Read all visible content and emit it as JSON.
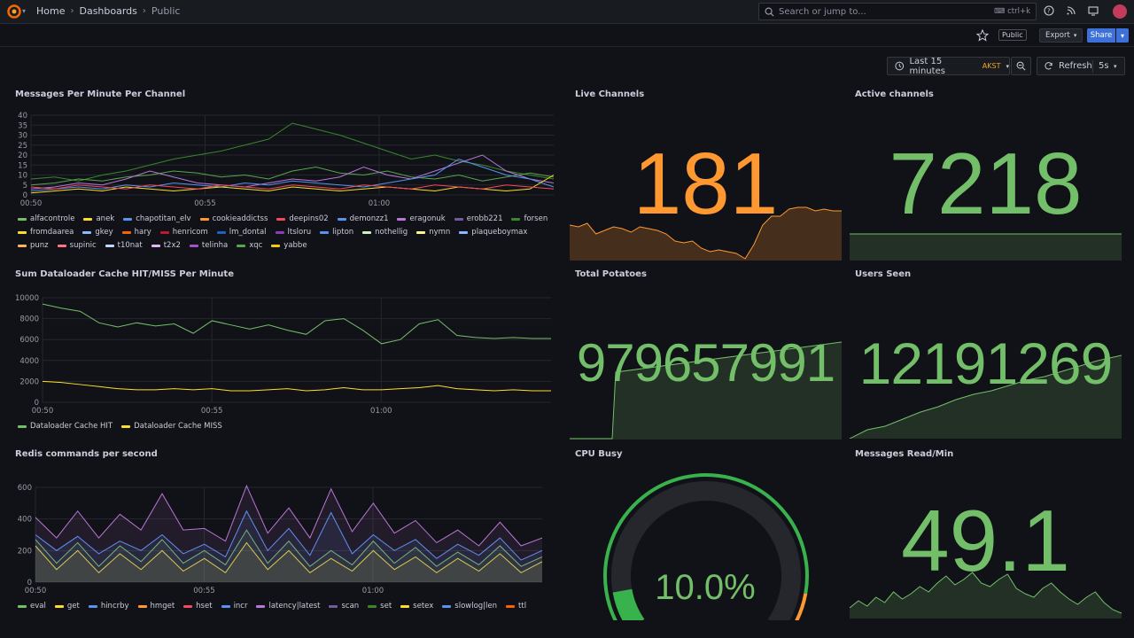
{
  "topbar": {
    "breadcrumbs": [
      "Home",
      "Dashboards",
      "Public"
    ],
    "search_placeholder": "Search or jump to...",
    "search_shortcut": "ctrl+k"
  },
  "toolbar": {
    "public_badge": "Public",
    "export_label": "Export",
    "share_label": "Share"
  },
  "time_controls": {
    "range_label": "Last 15 minutes",
    "timezone": "AKST",
    "refresh_label": "Refresh",
    "refresh_interval": "5s"
  },
  "panels": {
    "messages_per_minute": {
      "title": "Messages Per Minute Per Channel",
      "legend": [
        {
          "name": "alfacontrole",
          "color": "#73bf69"
        },
        {
          "name": "anek",
          "color": "#fade2a"
        },
        {
          "name": "chapotitan_elv",
          "color": "#5794f2"
        },
        {
          "name": "cookieaddictss",
          "color": "#ff9830"
        },
        {
          "name": "deepins02",
          "color": "#f2495c"
        },
        {
          "name": "demonzz1",
          "color": "#5794f2"
        },
        {
          "name": "eragonuk",
          "color": "#b877d9"
        },
        {
          "name": "erobb221",
          "color": "#705da0"
        },
        {
          "name": "forsen",
          "color": "#37872d"
        },
        {
          "name": "fromdaarea",
          "color": "#fade2a"
        },
        {
          "name": "gkey",
          "color": "#8ab8ff"
        },
        {
          "name": "hary",
          "color": "#fa6400"
        },
        {
          "name": "henricom",
          "color": "#c4162a"
        },
        {
          "name": "lm_dontal",
          "color": "#1f60c4"
        },
        {
          "name": "ltsloru",
          "color": "#8f3bb8"
        },
        {
          "name": "lipton",
          "color": "#5794f2"
        },
        {
          "name": "nothellig",
          "color": "#c8f2c2"
        },
        {
          "name": "nymn",
          "color": "#fff899"
        },
        {
          "name": "plaqueboymax",
          "color": "#8ab8ff"
        },
        {
          "name": "punz",
          "color": "#ffb357"
        },
        {
          "name": "supinic",
          "color": "#ff7383"
        },
        {
          "name": "t10nat",
          "color": "#c0d8ff"
        },
        {
          "name": "t2x2",
          "color": "#deb6f2"
        },
        {
          "name": "telinha",
          "color": "#a352cc"
        },
        {
          "name": "xqc",
          "color": "#56a64b"
        },
        {
          "name": "yabbe",
          "color": "#f2cc0c"
        }
      ]
    },
    "dataloader": {
      "title": "Sum Dataloader Cache HIT/MISS Per Minute",
      "legend": [
        {
          "name": "Dataloader Cache HIT",
          "color": "#73bf69"
        },
        {
          "name": "Dataloader Cache MISS",
          "color": "#fade2a"
        }
      ]
    },
    "redis": {
      "title": "Redis commands per second",
      "legend": [
        {
          "name": "eval",
          "color": "#73bf69"
        },
        {
          "name": "get",
          "color": "#fade2a"
        },
        {
          "name": "hincrby",
          "color": "#5794f2"
        },
        {
          "name": "hmget",
          "color": "#ff9830"
        },
        {
          "name": "hset",
          "color": "#f2495c"
        },
        {
          "name": "incr",
          "color": "#5794f2"
        },
        {
          "name": "latency|latest",
          "color": "#b877d9"
        },
        {
          "name": "scan",
          "color": "#705da0"
        },
        {
          "name": "set",
          "color": "#37872d"
        },
        {
          "name": "setex",
          "color": "#fade2a"
        },
        {
          "name": "slowlog|len",
          "color": "#5794f2"
        },
        {
          "name": "ttl",
          "color": "#fa6400"
        }
      ]
    },
    "live_channels": {
      "title": "Live Channels",
      "value": "181",
      "color": "#ff9830"
    },
    "active_channels": {
      "title": "Active channels",
      "value": "7218",
      "color": "#73bf69"
    },
    "total_potatoes": {
      "title": "Total Potatoes",
      "value": "979657991",
      "color": "#73bf69"
    },
    "users_seen": {
      "title": "Users Seen",
      "value": "12191269",
      "color": "#73bf69"
    },
    "cpu_busy": {
      "title": "CPU Busy",
      "value": "10.0%",
      "value_fraction": 0.1,
      "color": "#73bf69"
    },
    "messages_read": {
      "title": "Messages Read/Min",
      "value": "49.1",
      "color": "#73bf69"
    }
  },
  "chart_data": [
    {
      "type": "line",
      "title": "Messages Per Minute Per Channel",
      "x_ticks": [
        "00:50",
        "00:55",
        "01:00"
      ],
      "ylim": [
        0,
        40
      ],
      "y_ticks": [
        0,
        5,
        10,
        15,
        20,
        25,
        30,
        35,
        40
      ],
      "series": [
        {
          "name": "forsen",
          "values": [
            8,
            9,
            7,
            10,
            12,
            15,
            18,
            20,
            22,
            25,
            28,
            36,
            33,
            30,
            26,
            22,
            18,
            20,
            17,
            15,
            12,
            10,
            8
          ]
        },
        {
          "name": "xqc",
          "values": [
            5,
            6,
            8,
            7,
            9,
            10,
            12,
            11,
            9,
            10,
            8,
            12,
            14,
            11,
            10,
            12,
            9,
            8,
            10,
            7,
            9,
            11,
            9
          ]
        },
        {
          "name": "eragonuk",
          "values": [
            3,
            4,
            6,
            5,
            8,
            12,
            9,
            6,
            5,
            4,
            6,
            8,
            7,
            9,
            14,
            10,
            8,
            12,
            16,
            20,
            12,
            8,
            6
          ]
        },
        {
          "name": "lipton",
          "values": [
            2,
            3,
            4,
            3,
            5,
            4,
            6,
            5,
            4,
            6,
            5,
            7,
            6,
            5,
            4,
            6,
            8,
            10,
            18,
            14,
            10,
            8,
            4
          ]
        },
        {
          "name": "anek",
          "values": [
            1,
            2,
            3,
            2,
            4,
            3,
            2,
            3,
            4,
            3,
            2,
            4,
            3,
            2,
            3,
            4,
            3,
            2,
            4,
            3,
            2,
            3,
            10
          ]
        },
        {
          "name": "deepins02",
          "values": [
            4,
            3,
            5,
            4,
            3,
            5,
            4,
            3,
            5,
            4,
            3,
            5,
            4,
            3,
            5,
            4,
            3,
            5,
            4,
            3,
            5,
            4,
            3
          ]
        }
      ]
    },
    {
      "type": "line",
      "title": "Sum Dataloader Cache HIT/MISS Per Minute",
      "x_ticks": [
        "00:50",
        "00:55",
        "01:00"
      ],
      "ylim": [
        0,
        10000
      ],
      "y_ticks": [
        0,
        2000,
        4000,
        6000,
        8000,
        10000
      ],
      "series": [
        {
          "name": "Dataloader Cache HIT",
          "values": [
            9400,
            9000,
            8700,
            7600,
            7200,
            7600,
            7300,
            7500,
            6600,
            7800,
            7400,
            7000,
            7400,
            6900,
            6500,
            7800,
            8000,
            6900,
            5600,
            6000,
            7500,
            7900,
            6400,
            6200,
            6100,
            6200,
            6100,
            6100
          ]
        },
        {
          "name": "Dataloader Cache MISS",
          "values": [
            2000,
            1900,
            1700,
            1500,
            1300,
            1200,
            1200,
            1300,
            1200,
            1300,
            1100,
            1100,
            1200,
            1300,
            1100,
            1200,
            1400,
            1200,
            1200,
            1300,
            1400,
            1600,
            1300,
            1200,
            1100,
            1200,
            1100,
            1100
          ]
        }
      ]
    },
    {
      "type": "area",
      "title": "Redis commands per second",
      "x_ticks": [
        "00:50",
        "00:55",
        "01:00"
      ],
      "ylim": [
        0,
        600
      ],
      "y_ticks": [
        0,
        200,
        400,
        600
      ],
      "series": [
        {
          "name": "get",
          "values": [
            230,
            80,
            200,
            60,
            180,
            80,
            200,
            70,
            150,
            60,
            250,
            80,
            200,
            60,
            150,
            70,
            200,
            80,
            160,
            60,
            150,
            70,
            180,
            60,
            130
          ]
        },
        {
          "name": "eval",
          "values": [
            270,
            120,
            250,
            100,
            230,
            130,
            270,
            120,
            200,
            110,
            330,
            120,
            260,
            100,
            200,
            110,
            260,
            120,
            220,
            100,
            190,
            110,
            230,
            100,
            160
          ]
        },
        {
          "name": "hincrby",
          "values": [
            300,
            200,
            290,
            180,
            260,
            200,
            300,
            180,
            240,
            160,
            450,
            200,
            340,
            170,
            440,
            180,
            300,
            200,
            270,
            150,
            240,
            170,
            280,
            140,
            200
          ]
        },
        {
          "name": "latency|latest",
          "values": [
            410,
            280,
            450,
            280,
            430,
            330,
            560,
            330,
            340,
            260,
            610,
            310,
            470,
            280,
            590,
            320,
            500,
            310,
            390,
            250,
            330,
            230,
            380,
            230,
            280
          ]
        }
      ]
    }
  ]
}
